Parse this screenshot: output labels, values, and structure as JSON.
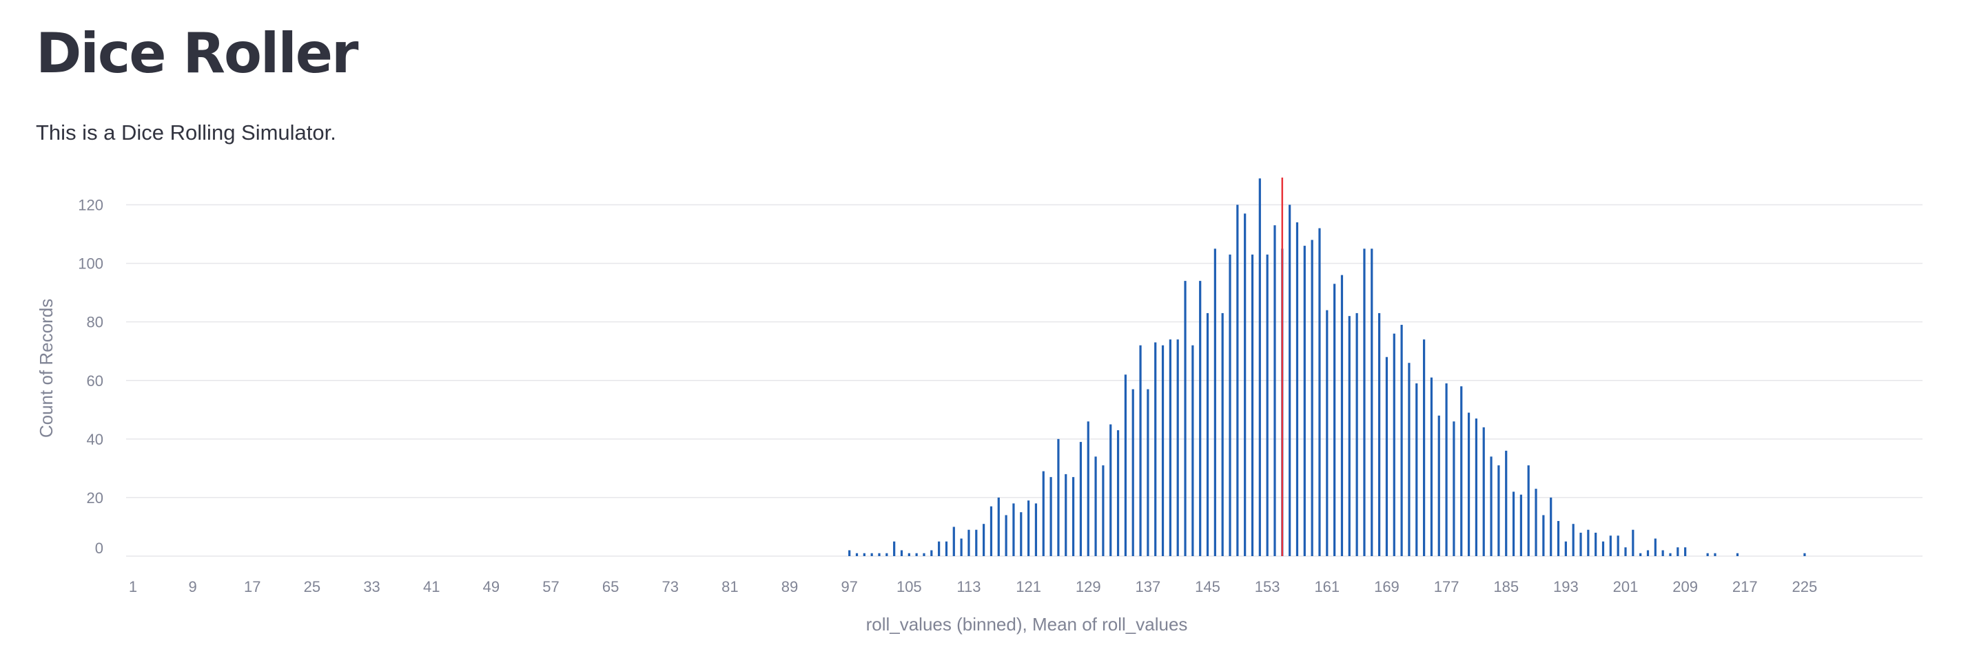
{
  "page": {
    "title": "Dice Roller",
    "description": "This is a Dice Rolling Simulator."
  },
  "colors": {
    "bar": "#1f5fb4",
    "mean_rule": "#e8333a",
    "grid": "#e6e6ea",
    "text": "#31333f",
    "axis_text": "#808495"
  },
  "chart_data": {
    "type": "bar",
    "title": "",
    "xlabel": "roll_values (binned), Mean of roll_values",
    "ylabel": "Count of Records",
    "x_ticks": [
      1,
      9,
      17,
      25,
      33,
      41,
      49,
      57,
      65,
      73,
      81,
      89,
      97,
      105,
      113,
      121,
      129,
      137,
      145,
      153,
      161,
      169,
      177,
      185,
      193,
      201,
      209,
      217,
      225
    ],
    "y_ticks": [
      0,
      20,
      40,
      60,
      80,
      100,
      120
    ],
    "xlim": [
      0,
      241
    ],
    "ylim": [
      0,
      130
    ],
    "grid": true,
    "mean": 155,
    "x": [
      97,
      98,
      99,
      100,
      101,
      102,
      103,
      104,
      105,
      106,
      107,
      108,
      109,
      110,
      111,
      112,
      113,
      114,
      115,
      116,
      117,
      118,
      119,
      120,
      121,
      122,
      123,
      124,
      125,
      126,
      127,
      128,
      129,
      130,
      131,
      132,
      133,
      134,
      135,
      136,
      137,
      138,
      139,
      140,
      141,
      142,
      143,
      144,
      145,
      146,
      147,
      148,
      149,
      150,
      151,
      152,
      153,
      154,
      155,
      156,
      157,
      158,
      159,
      160,
      161,
      162,
      163,
      164,
      165,
      166,
      167,
      168,
      169,
      170,
      171,
      172,
      173,
      174,
      175,
      176,
      177,
      178,
      179,
      180,
      181,
      182,
      183,
      184,
      185,
      186,
      187,
      188,
      189,
      190,
      191,
      192,
      193,
      194,
      195,
      196,
      197,
      198,
      199,
      200,
      201,
      202,
      203,
      204,
      205,
      206,
      207,
      208,
      209,
      210,
      211,
      212,
      213,
      214,
      215,
      216,
      217,
      218,
      219,
      220,
      221,
      222,
      223,
      224,
      225
    ],
    "values": [
      2,
      1,
      1,
      1,
      1,
      1,
      5,
      2,
      1,
      1,
      1,
      2,
      5,
      5,
      10,
      6,
      9,
      9,
      11,
      17,
      20,
      14,
      18,
      15,
      19,
      18,
      29,
      27,
      40,
      28,
      27,
      39,
      46,
      34,
      31,
      45,
      43,
      62,
      57,
      72,
      57,
      73,
      72,
      74,
      74,
      94,
      72,
      94,
      83,
      105,
      83,
      103,
      120,
      117,
      103,
      129,
      103,
      113,
      105,
      120,
      114,
      106,
      108,
      112,
      84,
      93,
      96,
      82,
      83,
      105,
      105,
      83,
      68,
      76,
      79,
      66,
      59,
      74,
      61,
      48,
      59,
      46,
      58,
      49,
      47,
      44,
      34,
      31,
      36,
      22,
      21,
      31,
      23,
      14,
      20,
      12,
      5,
      11,
      8,
      9,
      8,
      5,
      7,
      7,
      3,
      9,
      1,
      2,
      6,
      2,
      1,
      3,
      3,
      0,
      0,
      1,
      1,
      0,
      0,
      1,
      0,
      0,
      0,
      0,
      0,
      0,
      0,
      0,
      1
    ]
  }
}
